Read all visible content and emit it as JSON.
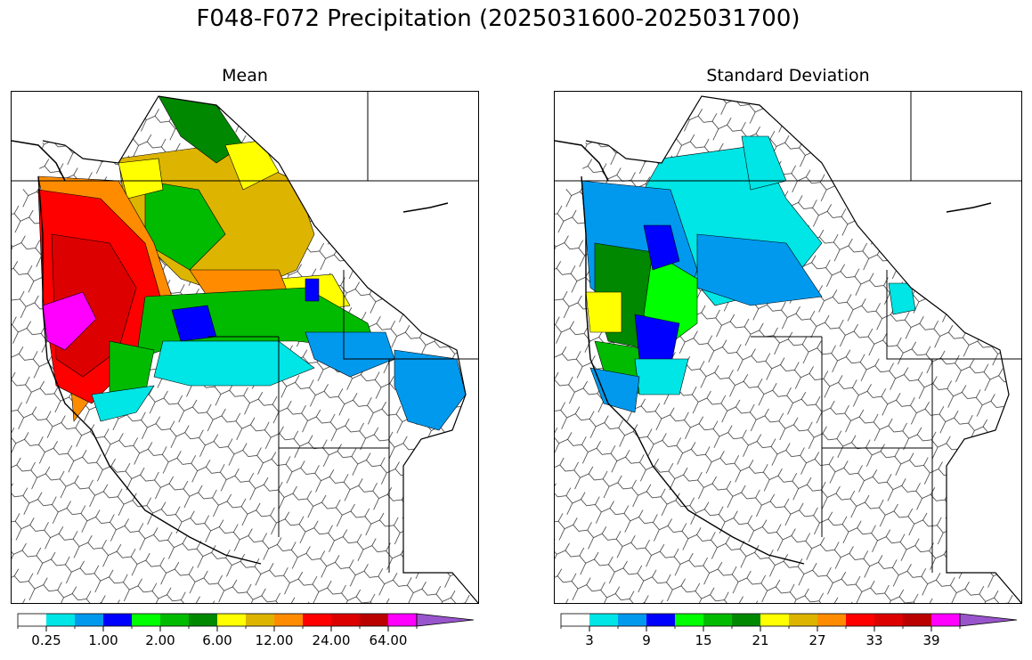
{
  "title": "F048-F072 Precipitation (2025031600-2025031700)",
  "panels": [
    {
      "title": "Mean"
    },
    {
      "title": "Standard Deviation"
    }
  ],
  "colorbars": {
    "colors": [
      "#ffffff",
      "#00e5e5",
      "#0099ee",
      "#0000ff",
      "#00ff00",
      "#00bb00",
      "#008800",
      "#ffff00",
      "#ddb400",
      "#ff8c00",
      "#ff0000",
      "#dd0000",
      "#bb0000",
      "#ff00ff",
      "#9955cc"
    ],
    "mean_ticks": [
      "0.25",
      "1.00",
      "2.00",
      "6.00",
      "12.00",
      "24.00",
      "64.00"
    ],
    "std_ticks": [
      "3",
      "9",
      "15",
      "21",
      "27",
      "33",
      "39"
    ]
  },
  "chart_data": [
    {
      "type": "map",
      "title": "Mean",
      "variable": "precipitation mean",
      "legend": {
        "extend": "max",
        "ticks": [
          "0.25",
          "1.00",
          "2.00",
          "6.00",
          "12.00",
          "24.00",
          "64.00"
        ]
      }
    },
    {
      "type": "map",
      "title": "Standard Deviation",
      "variable": "precipitation standard deviation",
      "legend": {
        "extend": "max",
        "ticks": [
          "3",
          "9",
          "15",
          "21",
          "27",
          "33",
          "39"
        ]
      }
    }
  ]
}
